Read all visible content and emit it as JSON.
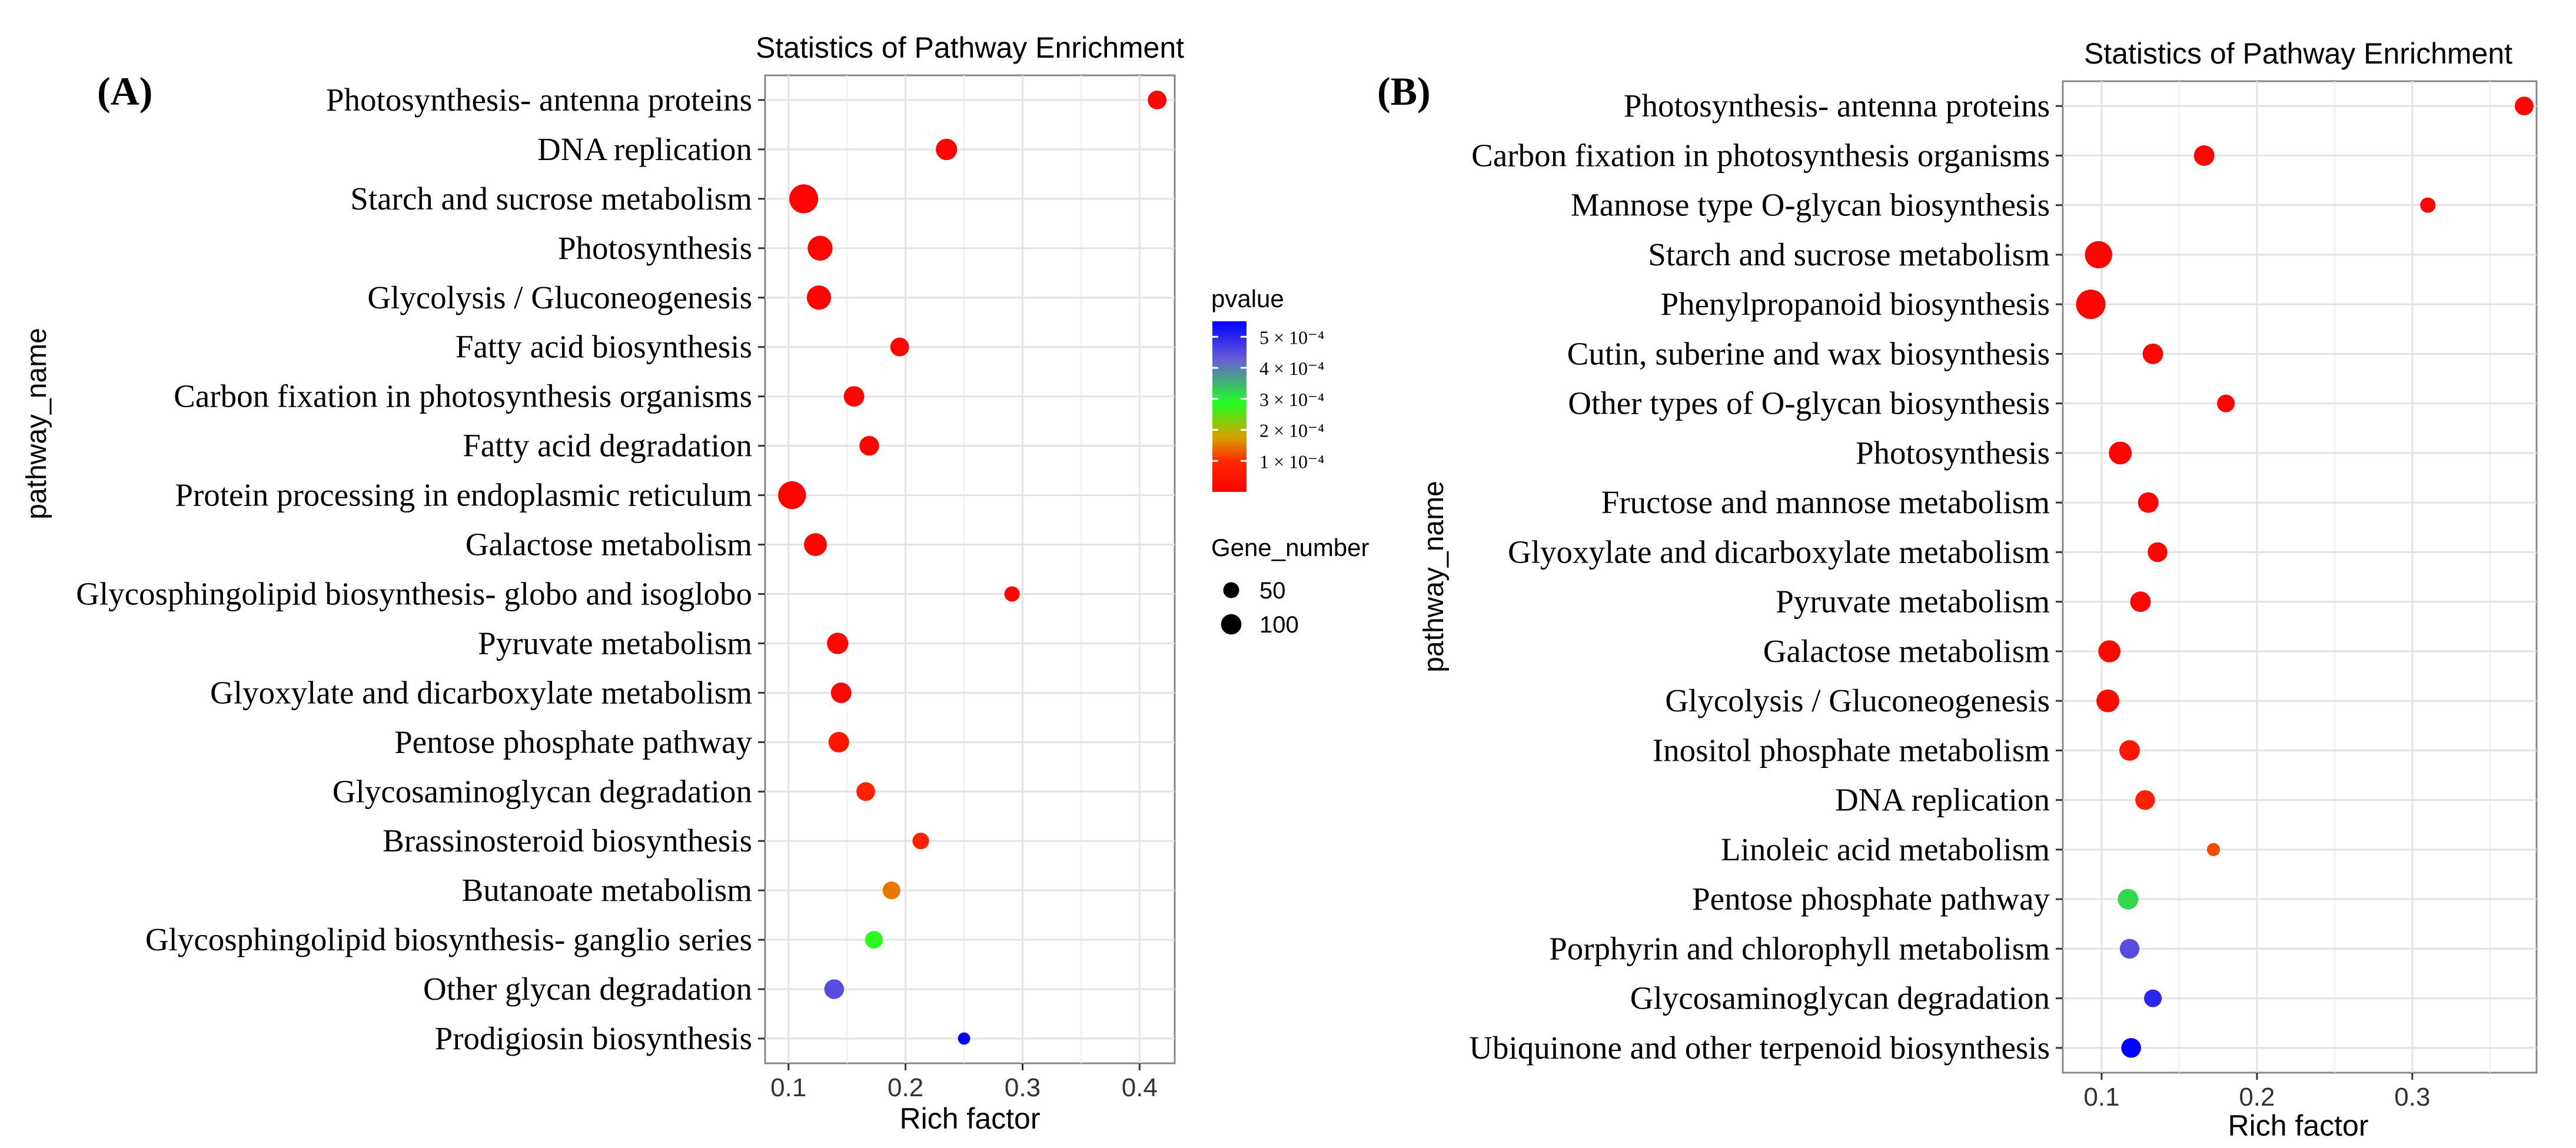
{
  "chart_data": [
    {
      "type": "scatter",
      "panel_label": "(A)",
      "title": "Statistics of Pathway Enrichment",
      "xlabel": "Rich factor",
      "ylabel": "pathway_name",
      "xlim": [
        0.08,
        0.43
      ],
      "xticks": [
        0.1,
        0.2,
        0.3,
        0.4
      ],
      "xtick_labels": [
        "0.1",
        "0.2",
        "0.3",
        "0.4"
      ],
      "grid": true,
      "points": [
        {
          "pathway": "Photosynthesis- antenna proteins",
          "rich_factor": 0.415,
          "gene_number": 30,
          "pvalue": 1e-05
        },
        {
          "pathway": "DNA replication",
          "rich_factor": 0.235,
          "gene_number": 45,
          "pvalue": 1e-05
        },
        {
          "pathway": "Starch and sucrose metabolism",
          "rich_factor": 0.113,
          "gene_number": 105,
          "pvalue": 1e-05
        },
        {
          "pathway": "Photosynthesis",
          "rich_factor": 0.127,
          "gene_number": 70,
          "pvalue": 1e-05
        },
        {
          "pathway": "Glycolysis / Gluconeogenesis",
          "rich_factor": 0.126,
          "gene_number": 65,
          "pvalue": 1e-05
        },
        {
          "pathway": "Fatty acid biosynthesis",
          "rich_factor": 0.195,
          "gene_number": 30,
          "pvalue": 1e-05
        },
        {
          "pathway": "Carbon fixation in photosynthesis organisms",
          "rich_factor": 0.156,
          "gene_number": 40,
          "pvalue": 1e-05
        },
        {
          "pathway": "Fatty acid degradation",
          "rich_factor": 0.169,
          "gene_number": 35,
          "pvalue": 1e-05
        },
        {
          "pathway": "Protein processing in endoplasmic reticulum",
          "rich_factor": 0.103,
          "gene_number": 95,
          "pvalue": 1e-05
        },
        {
          "pathway": "Galactose metabolism",
          "rich_factor": 0.123,
          "gene_number": 55,
          "pvalue": 1e-05
        },
        {
          "pathway": "Glycosphingolipid biosynthesis- globo and isoglobo",
          "rich_factor": 0.291,
          "gene_number": 15,
          "pvalue": 1e-05
        },
        {
          "pathway": "Pyruvate metabolism",
          "rich_factor": 0.142,
          "gene_number": 45,
          "pvalue": 2e-05
        },
        {
          "pathway": "Glyoxylate and dicarboxylate metabolism",
          "rich_factor": 0.145,
          "gene_number": 40,
          "pvalue": 2e-05
        },
        {
          "pathway": "Pentose phosphate pathway",
          "rich_factor": 0.143,
          "gene_number": 40,
          "pvalue": 5e-05
        },
        {
          "pathway": "Glycosaminoglycan degradation",
          "rich_factor": 0.166,
          "gene_number": 30,
          "pvalue": 8e-05
        },
        {
          "pathway": "Brassinosteroid biosynthesis",
          "rich_factor": 0.213,
          "gene_number": 20,
          "pvalue": 8e-05
        },
        {
          "pathway": "Butanoate metabolism",
          "rich_factor": 0.188,
          "gene_number": 25,
          "pvalue": 0.00015
        },
        {
          "pathway": "Glycosphingolipid biosynthesis- ganglio series",
          "rich_factor": 0.173,
          "gene_number": 25,
          "pvalue": 0.00028
        },
        {
          "pathway": "Other glycan degradation",
          "rich_factor": 0.139,
          "gene_number": 35,
          "pvalue": 0.00045
        },
        {
          "pathway": "Prodigiosin biosynthesis",
          "rich_factor": 0.25,
          "gene_number": 6,
          "pvalue": 0.00055
        }
      ]
    },
    {
      "type": "scatter",
      "panel_label": "(B)",
      "title": "Statistics of Pathway Enrichment",
      "xlabel": "Rich factor",
      "ylabel": "pathway_name",
      "xlim": [
        0.075,
        0.38
      ],
      "xticks": [
        0.1,
        0.2,
        0.3
      ],
      "xtick_labels": [
        "0.1",
        "0.2",
        "0.3"
      ],
      "grid": true,
      "points": [
        {
          "pathway": "Photosynthesis- antenna proteins",
          "rich_factor": 0.372,
          "gene_number": 30,
          "pvalue": 1e-05
        },
        {
          "pathway": "Carbon fixation in photosynthesis organisms",
          "rich_factor": 0.166,
          "gene_number": 40,
          "pvalue": 1e-05
        },
        {
          "pathway": "Mannose type O-glycan biosynthesis",
          "rich_factor": 0.31,
          "gene_number": 15,
          "pvalue": 1e-05
        },
        {
          "pathway": "Starch and sucrose metabolism",
          "rich_factor": 0.098,
          "gene_number": 90,
          "pvalue": 1e-05
        },
        {
          "pathway": "Phenylpropanoid biosynthesis",
          "rich_factor": 0.093,
          "gene_number": 110,
          "pvalue": 1e-05
        },
        {
          "pathway": "Cutin, suberine and wax biosynthesis",
          "rich_factor": 0.133,
          "gene_number": 40,
          "pvalue": 1e-05
        },
        {
          "pathway": "Other types of O-glycan biosynthesis",
          "rich_factor": 0.18,
          "gene_number": 25,
          "pvalue": 1e-05
        },
        {
          "pathway": "Photosynthesis",
          "rich_factor": 0.112,
          "gene_number": 55,
          "pvalue": 1e-05
        },
        {
          "pathway": "Fructose and mannose metabolism",
          "rich_factor": 0.13,
          "gene_number": 40,
          "pvalue": 1e-05
        },
        {
          "pathway": "Glyoxylate and dicarboxylate metabolism",
          "rich_factor": 0.136,
          "gene_number": 35,
          "pvalue": 1e-05
        },
        {
          "pathway": "Pyruvate metabolism",
          "rich_factor": 0.125,
          "gene_number": 40,
          "pvalue": 1e-05
        },
        {
          "pathway": "Galactose metabolism",
          "rich_factor": 0.105,
          "gene_number": 50,
          "pvalue": 2e-05
        },
        {
          "pathway": "Glycolysis / Gluconeogenesis",
          "rich_factor": 0.104,
          "gene_number": 55,
          "pvalue": 2e-05
        },
        {
          "pathway": "Inositol phosphate metabolism",
          "rich_factor": 0.118,
          "gene_number": 40,
          "pvalue": 5e-05
        },
        {
          "pathway": "DNA replication",
          "rich_factor": 0.128,
          "gene_number": 35,
          "pvalue": 8e-05
        },
        {
          "pathway": "Linoleic acid metabolism",
          "rich_factor": 0.172,
          "gene_number": 8,
          "pvalue": 0.00012
        },
        {
          "pathway": "Pentose phosphate pathway",
          "rich_factor": 0.117,
          "gene_number": 40,
          "pvalue": 0.00032
        },
        {
          "pathway": "Porphyrin and chlorophyll metabolism",
          "rich_factor": 0.118,
          "gene_number": 35,
          "pvalue": 0.00045
        },
        {
          "pathway": "Glycosaminoglycan degradation",
          "rich_factor": 0.133,
          "gene_number": 25,
          "pvalue": 0.0005
        },
        {
          "pathway": "Ubiquinone and other terpenoid biosynthesis",
          "rich_factor": 0.119,
          "gene_number": 35,
          "pvalue": 0.00055
        }
      ]
    }
  ],
  "legend": {
    "color_title": "pvalue",
    "color_range": [
      0.0,
      0.00055
    ],
    "color_ticks": [
      0.0001,
      0.0002,
      0.0003,
      0.0004,
      0.0005
    ],
    "color_tick_labels": [
      "1 × 10⁻⁴",
      "2 × 10⁻⁴",
      "3 × 10⁻⁴",
      "4 × 10⁻⁴",
      "5 × 10⁻⁴"
    ],
    "size_title": "Gene_number",
    "size_values": [
      50,
      100
    ],
    "size_labels": [
      "50",
      "100"
    ],
    "colors": {
      "low": "#ff0000",
      "mid_low": "#c8a000",
      "mid": "#20ff20",
      "high": "#0000ff"
    }
  }
}
